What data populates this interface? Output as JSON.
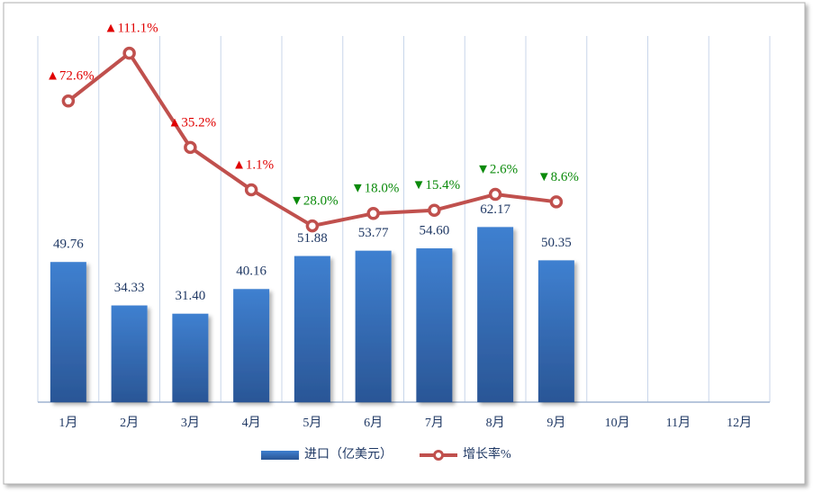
{
  "chart_data": {
    "type": "combo",
    "categories": [
      "1月",
      "2月",
      "3月",
      "4月",
      "5月",
      "6月",
      "7月",
      "8月",
      "9月",
      "10月",
      "11月",
      "12月"
    ],
    "series": [
      {
        "name": "进口（亿美元）",
        "type": "bar",
        "color": "#3b78c6",
        "values": [
          49.76,
          34.33,
          31.4,
          40.16,
          51.88,
          53.77,
          54.6,
          62.17,
          50.35,
          null,
          null,
          null
        ],
        "value_labels": [
          "49.76",
          "34.33",
          "31.40",
          "40.16",
          "51.88",
          "53.77",
          "54.60",
          "62.17",
          "50.35",
          null,
          null,
          null
        ]
      },
      {
        "name": "增长率%",
        "type": "line",
        "axis": "y2",
        "color": "#c0504d",
        "values": [
          72.6,
          111.1,
          35.2,
          1.1,
          -28.0,
          -18.0,
          -15.4,
          -2.6,
          -8.6,
          null,
          null,
          null
        ],
        "value_labels": [
          "▲72.6%",
          "▲111.1%",
          "▲35.2%",
          "▲1.1%",
          "▼28.0%",
          "▼18.0%",
          "▼15.4%",
          "▼2.6%",
          "▼8.6%",
          null,
          null,
          null
        ]
      }
    ],
    "ylim": [
      0,
      130
    ],
    "y2lim": [
      -170,
      125
    ],
    "grid": true,
    "legend": "bottom"
  }
}
